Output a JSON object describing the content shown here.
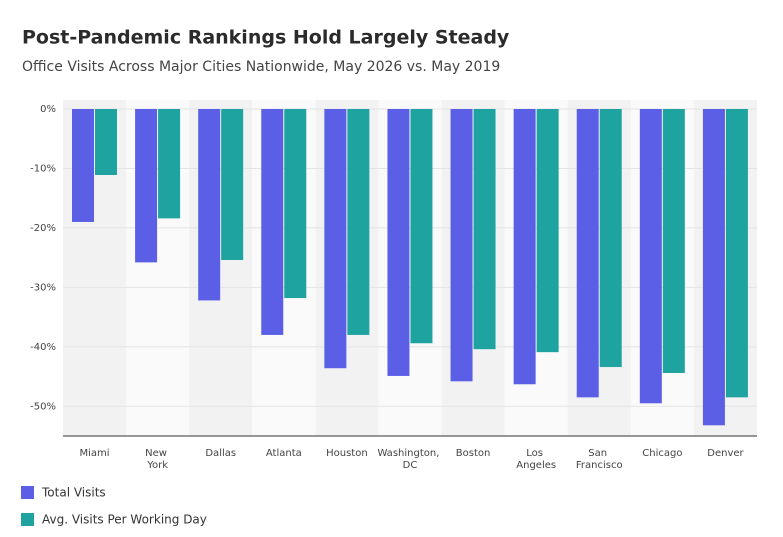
{
  "chart_data": {
    "type": "bar",
    "title": "Post-Pandemic Rankings Hold Largely Steady",
    "subtitle": "Office Visits Across Major Cities Nationwide, May 2026 vs. May 2019",
    "categories": [
      "Miami",
      "New York",
      "Dallas",
      "Atlanta",
      "Houston",
      "Washington, DC",
      "Boston",
      "Los Angeles",
      "San Francisco",
      "Chicago",
      "Denver"
    ],
    "series": [
      {
        "name": "Total Visits",
        "color": "#5b5fe6",
        "values": [
          -19.0,
          -25.8,
          -32.2,
          -38.0,
          -43.6,
          -44.9,
          -45.8,
          -46.3,
          -48.5,
          -49.5,
          -53.2
        ]
      },
      {
        "name": "Avg. Visits Per Working Day",
        "color": "#1fa3a0",
        "values": [
          -11.1,
          -18.4,
          -25.4,
          -31.8,
          -38.0,
          -39.4,
          -40.4,
          -40.9,
          -43.4,
          -44.4,
          -48.5
        ]
      }
    ],
    "ylim": [
      -55,
      0
    ],
    "yticks": [
      {
        "value": 0,
        "label": "0%"
      },
      {
        "value": -10,
        "label": "-10%"
      },
      {
        "value": -20,
        "label": "-20%"
      },
      {
        "value": -30,
        "label": "-30%"
      },
      {
        "value": -40,
        "label": "-40%"
      },
      {
        "value": -50,
        "label": "-50%"
      }
    ],
    "grid": true
  }
}
